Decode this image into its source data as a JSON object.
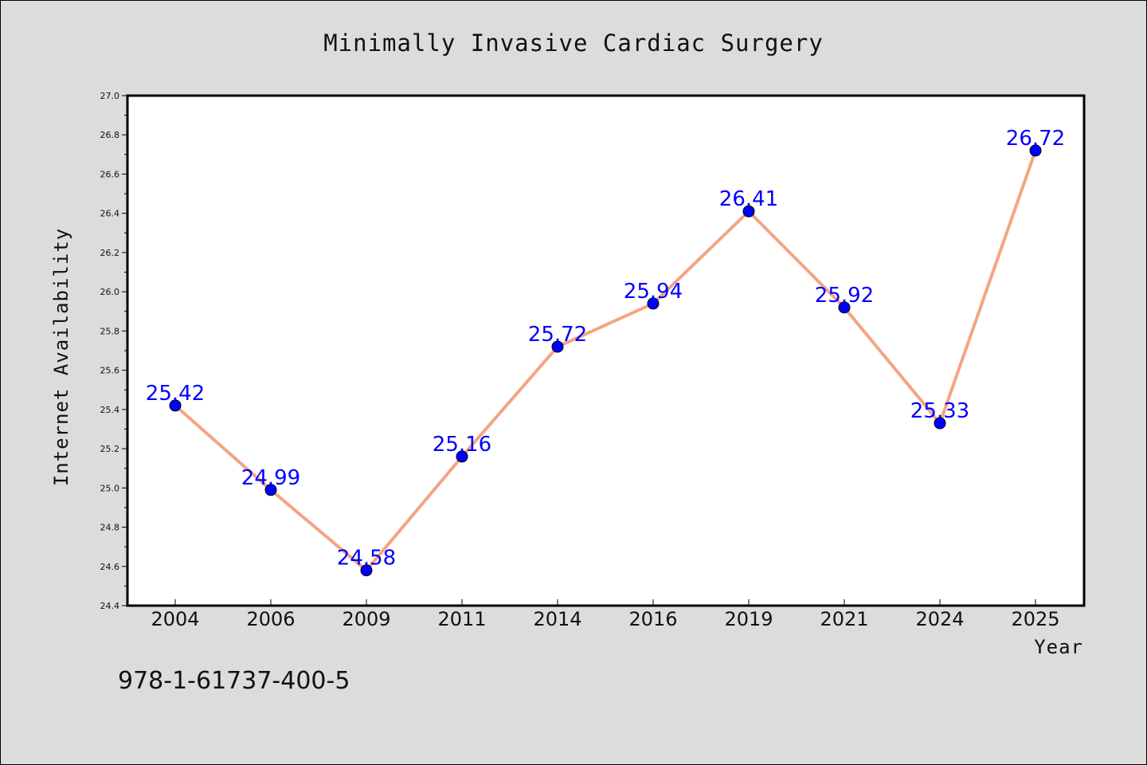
{
  "chart_data": {
    "type": "line",
    "title": "Minimally Invasive Cardiac Surgery",
    "xlabel": "Year",
    "ylabel": "Internet Availability",
    "categories": [
      "2004",
      "2006",
      "2009",
      "2011",
      "2014",
      "2016",
      "2019",
      "2021",
      "2024",
      "2025"
    ],
    "values": [
      25.42,
      24.99,
      24.58,
      25.16,
      25.72,
      25.94,
      26.41,
      25.92,
      25.33,
      26.72
    ],
    "value_labels": [
      "25.42",
      "24.99",
      "24.58",
      "25.16",
      "25.72",
      "25.94",
      "26.41",
      "25.92",
      "25.33",
      "26.72"
    ],
    "ylim": [
      24.4,
      27.0
    ],
    "yticks": [
      "24.4",
      "24.6",
      "24.8",
      "25.0",
      "25.2",
      "25.4",
      "25.6",
      "25.8",
      "26.0",
      "26.2",
      "26.4",
      "26.6",
      "26.8",
      "27.0"
    ],
    "grid": false,
    "line_color": "#f4a582",
    "marker_color": "#0000ff",
    "label_color": "#0000ff"
  },
  "footer": {
    "isbn": "978-1-61737-400-5"
  }
}
